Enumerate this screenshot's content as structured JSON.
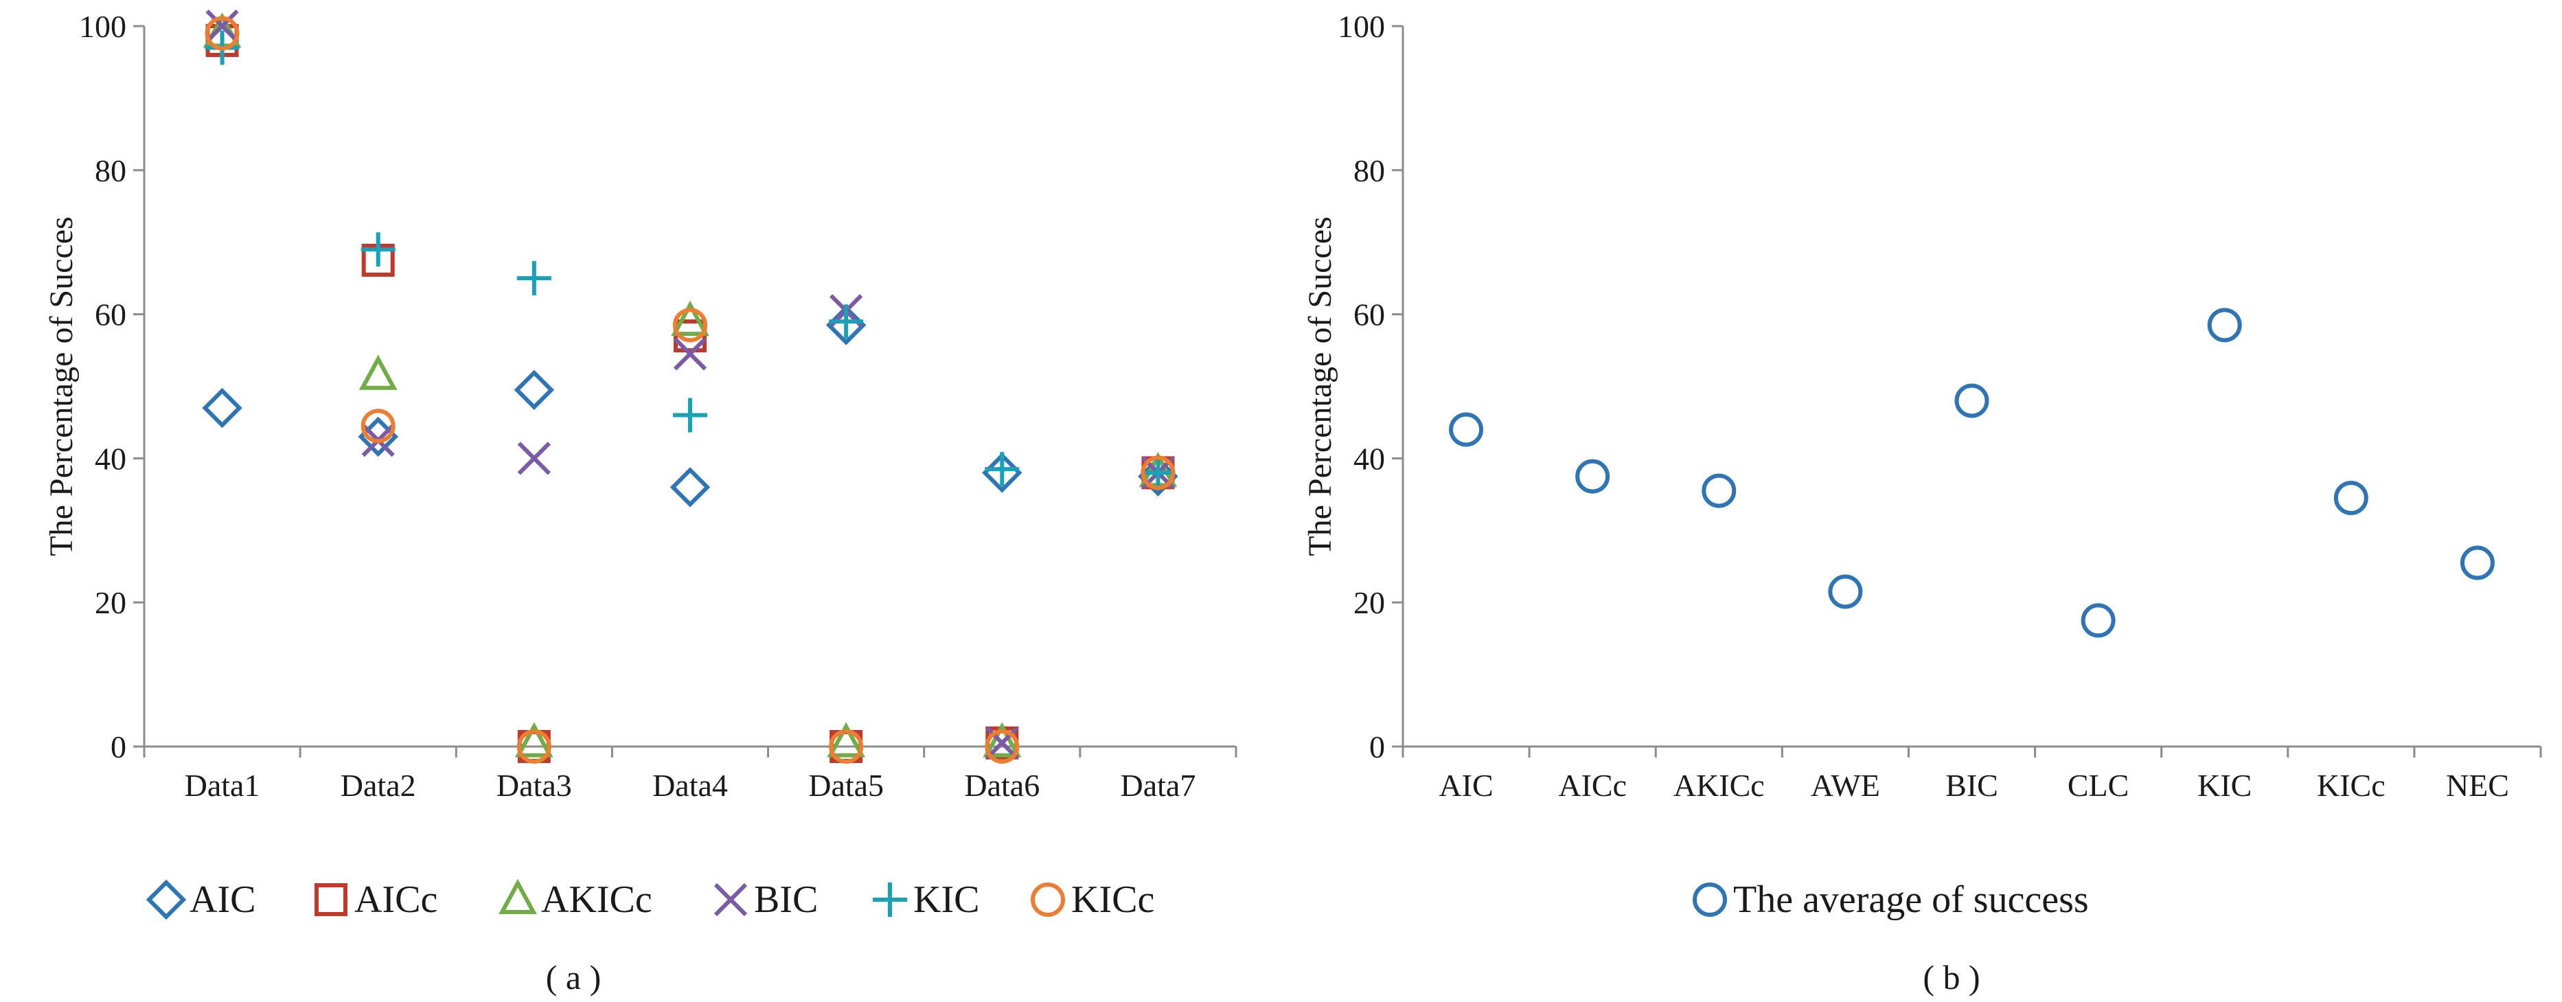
{
  "chart_data": [
    {
      "type": "scatter",
      "panel_label": "( a )",
      "ylabel": "The Percentage of Succes",
      "ylim": [
        0,
        100
      ],
      "yticks": [
        0,
        20,
        40,
        60,
        80,
        100
      ],
      "grid": false,
      "legend_position": "bottom",
      "categories": [
        "Data1",
        "Data2",
        "Data3",
        "Data4",
        "Data5",
        "Data6",
        "Data7"
      ],
      "series": [
        {
          "name": "AIC",
          "marker": "diamond",
          "color": "#2e75b6",
          "values": [
            47,
            43,
            49.5,
            36,
            58.5,
            38,
            37.5
          ]
        },
        {
          "name": "AICc",
          "marker": "square",
          "color": "#c0392b",
          "values": [
            98,
            67.5,
            0,
            57,
            0,
            0.5,
            38
          ]
        },
        {
          "name": "AKICc",
          "marker": "triangle",
          "color": "#70ad47",
          "values": [
            99,
            51.5,
            0.5,
            59,
            0.5,
            0.5,
            38
          ]
        },
        {
          "name": "BIC",
          "marker": "cross",
          "color": "#7b5aa6",
          "values": [
            100,
            42.5,
            40,
            54.5,
            60.5,
            0.5,
            38
          ]
        },
        {
          "name": "KIC",
          "marker": "plus",
          "color": "#17a2b8",
          "values": [
            97,
            69,
            65,
            46,
            59,
            38.5,
            38
          ]
        },
        {
          "name": "KICc",
          "marker": "circle",
          "color": "#ed7d31",
          "values": [
            99,
            44.5,
            0,
            58.5,
            0,
            0,
            38
          ]
        }
      ]
    },
    {
      "type": "scatter",
      "panel_label": "( b )",
      "ylabel": "The Percentage of Succes",
      "ylim": [
        0,
        100
      ],
      "yticks": [
        0,
        20,
        40,
        60,
        80,
        100
      ],
      "grid": false,
      "legend_position": "bottom",
      "categories": [
        "AIC",
        "AICc",
        "AKICc",
        "AWE",
        "BIC",
        "CLC",
        "KIC",
        "KICc",
        "NEC"
      ],
      "series": [
        {
          "name": "The average of success",
          "marker": "circle",
          "color": "#2e75b6",
          "values": [
            44,
            37.5,
            35.5,
            21.5,
            48,
            17.5,
            58.5,
            34.5,
            25.5
          ]
        }
      ]
    }
  ]
}
